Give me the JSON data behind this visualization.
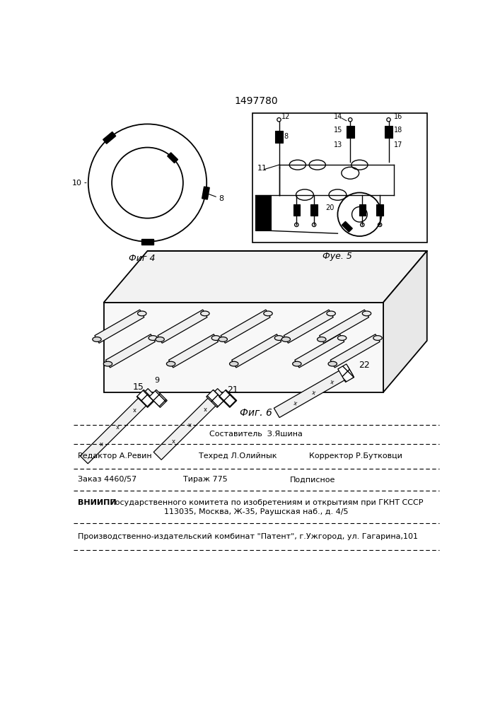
{
  "title": "1497780",
  "bg_color": "#ffffff",
  "fig4_label": "Фиг 4",
  "fig5_label": "Фуе. 5",
  "fig6_label": "Фиг. 6"
}
